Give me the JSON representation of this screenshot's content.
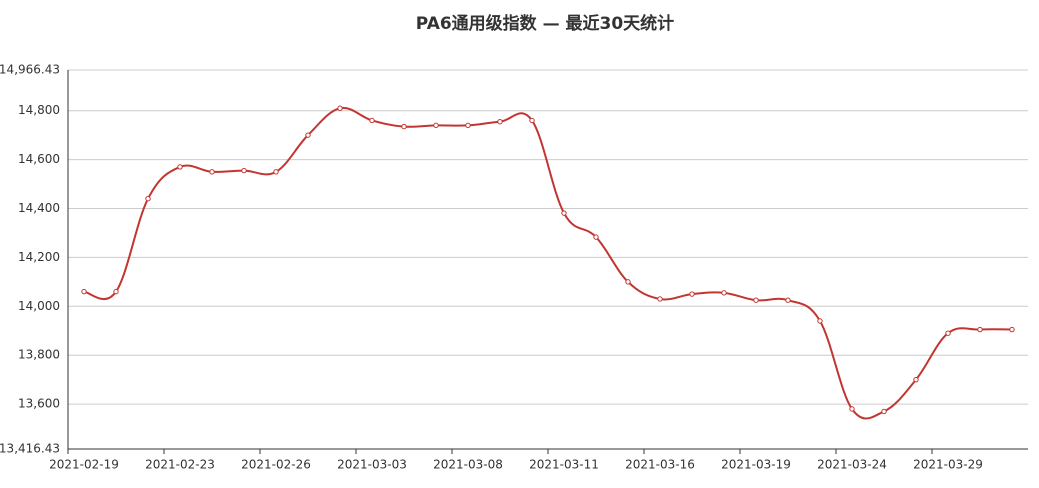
{
  "chart_data": {
    "type": "line",
    "title": "PA6通用级指数 — 最近30天统计",
    "categories": [
      "2021-02-19",
      null,
      null,
      "2021-02-23",
      null,
      null,
      "2021-02-26",
      null,
      null,
      "2021-03-03",
      null,
      null,
      "2021-03-08",
      null,
      null,
      "2021-03-11",
      null,
      null,
      "2021-03-16",
      null,
      null,
      "2021-03-19",
      null,
      null,
      "2021-03-24",
      null,
      null,
      "2021-03-29",
      null,
      null
    ],
    "series": [
      {
        "name": "PA6通用级指数",
        "color": "#c23531",
        "values": [
          14060,
          14060,
          14440,
          14570,
          14550,
          14555,
          14550,
          14700,
          14810,
          14760,
          14735,
          14740,
          14740,
          14755,
          14760,
          14381,
          14283,
          14100,
          14030,
          14050,
          14055,
          14025,
          14025,
          13940,
          13580,
          13570,
          13700,
          13890,
          13905,
          13905
        ]
      }
    ],
    "ylim": [
      13416.43,
      14966.43
    ],
    "yticks": [
      {
        "value": 13416.43,
        "label": "13,416.43"
      },
      {
        "value": 13600,
        "label": "13,600"
      },
      {
        "value": 13800,
        "label": "13,800"
      },
      {
        "value": 14000,
        "label": "14,000"
      },
      {
        "value": 14200,
        "label": "14,200"
      },
      {
        "value": 14400,
        "label": "14,400"
      },
      {
        "value": 14600,
        "label": "14,600"
      },
      {
        "value": 14800,
        "label": "14,800"
      },
      {
        "value": 14966.43,
        "label": "14,966.43"
      }
    ],
    "grid": true
  }
}
